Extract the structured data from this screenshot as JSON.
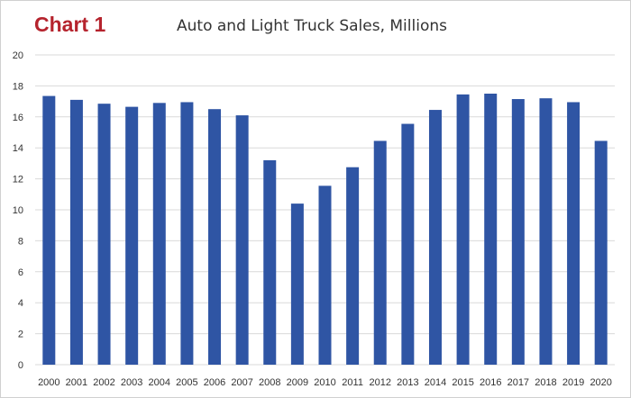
{
  "header": {
    "label": "Chart 1",
    "title": "Auto and Light Truck Sales, Millions"
  },
  "colors": {
    "bar": "#2f55a4",
    "grid": "#d9d9d9",
    "label": "#b5232d"
  },
  "chart_data": {
    "type": "bar",
    "title": "Auto and Light Truck Sales, Millions",
    "xlabel": "",
    "ylabel": "",
    "ylim": [
      0,
      20
    ],
    "yticks": [
      0,
      2,
      4,
      6,
      8,
      10,
      12,
      14,
      16,
      18,
      20
    ],
    "grid": true,
    "legend": "none",
    "categories": [
      "2000",
      "2001",
      "2002",
      "2003",
      "2004",
      "2005",
      "2006",
      "2007",
      "2008",
      "2009",
      "2010",
      "2011",
      "2012",
      "2013",
      "2014",
      "2015",
      "2016",
      "2017",
      "2018",
      "2019",
      "2020"
    ],
    "values": [
      17.35,
      17.1,
      16.85,
      16.65,
      16.9,
      16.95,
      16.5,
      16.1,
      13.2,
      10.4,
      11.55,
      12.75,
      14.45,
      15.55,
      16.45,
      17.45,
      17.5,
      17.15,
      17.2,
      16.95,
      14.45
    ]
  }
}
